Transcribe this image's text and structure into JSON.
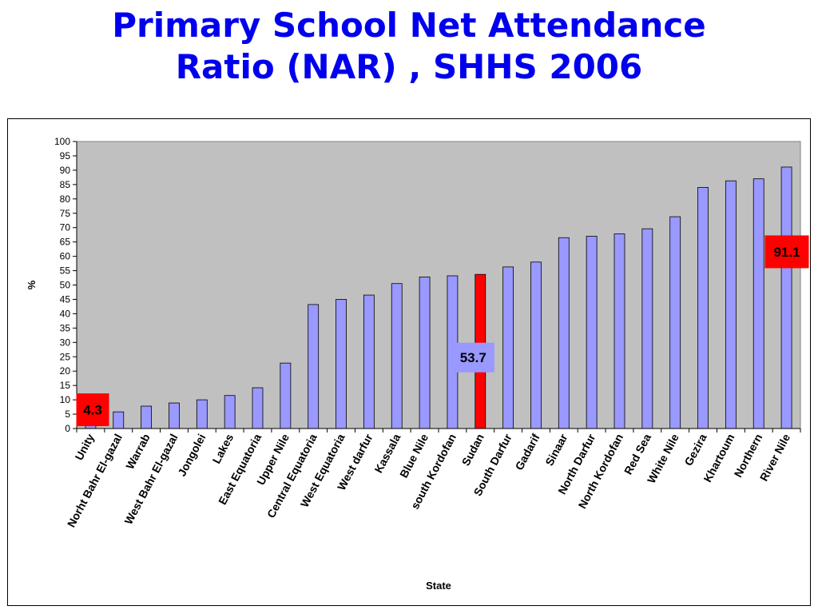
{
  "title_lines": [
    "Primary School Net Attendance",
    "Ratio (NAR) , SHHS 2006"
  ],
  "chart_data": {
    "type": "bar",
    "title": "Primary School Net Attendance Ratio (NAR) , SHHS 2006",
    "xlabel": "State",
    "ylabel": "%",
    "ylim": [
      0,
      100
    ],
    "yticks": [
      0,
      5,
      10,
      15,
      20,
      25,
      30,
      35,
      40,
      45,
      50,
      55,
      60,
      65,
      70,
      75,
      80,
      85,
      90,
      95,
      100
    ],
    "grid": false,
    "plot_background": "#c0c0c0",
    "bar_color": "#9999ff",
    "highlight_color": "#ff0000",
    "categories": [
      "Unity",
      "Norht Bahr El-gazal",
      "Warrab",
      "West Bahr El-gazal",
      "Jongolei",
      "Lakes",
      "East Equatoria",
      "Upper Nile",
      "Central Equatoria",
      "West Equatoria",
      "West darfur",
      "Kassala",
      "Blue Nile",
      "south Kordofan",
      "Sudan",
      "South Darfur",
      "Gadarif",
      "Sinaar",
      "North Darfur",
      "North Kordofan",
      "Red Sea",
      "White Nile",
      "Gezira",
      "Khartoum",
      "Northern",
      "River Nile"
    ],
    "values": [
      4.3,
      5.8,
      7.8,
      8.9,
      10.0,
      11.5,
      14.2,
      22.8,
      43.2,
      45.0,
      46.5,
      50.5,
      52.8,
      53.2,
      53.7,
      56.3,
      58.0,
      66.5,
      67.0,
      67.8,
      69.6,
      73.8,
      84.0,
      86.3,
      87.0,
      91.1
    ],
    "highlight_index": 14,
    "annotations": [
      {
        "text": "4.3",
        "category": "Unity",
        "color": "#ff0000"
      },
      {
        "text": "53.7",
        "category": "Sudan",
        "color": "#9999ff"
      },
      {
        "text": "91.1",
        "category": "River Nile",
        "color": "#ff0000"
      }
    ]
  }
}
